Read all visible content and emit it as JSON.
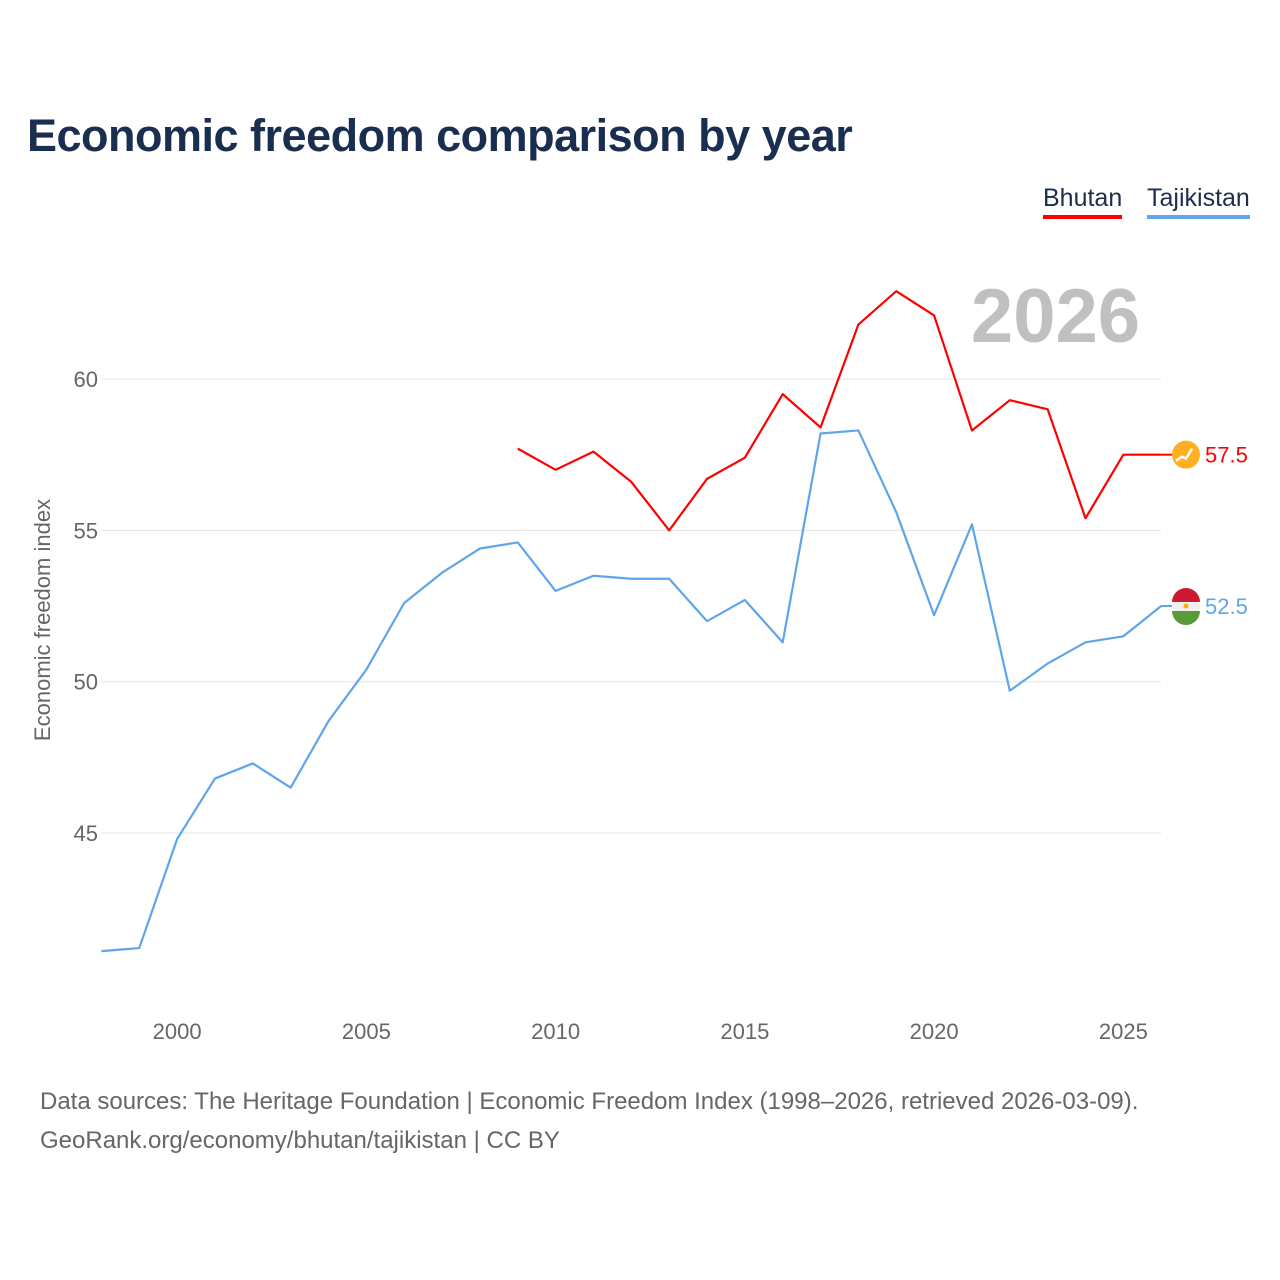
{
  "chart_data": {
    "type": "line",
    "title": "Economic freedom comparison by year",
    "xlabel": "",
    "ylabel": "Economic freedom index",
    "xlim": [
      1998,
      2026
    ],
    "ylim": [
      40,
      64
    ],
    "yticks": [
      45,
      50,
      55,
      60
    ],
    "xticks": [
      2000,
      2005,
      2010,
      2015,
      2020,
      2025
    ],
    "grid": true,
    "legend_position": "top-right",
    "year_watermark": "2026",
    "series": [
      {
        "name": "Bhutan",
        "color": "#ff0000",
        "end_label": "57.5",
        "x": [
          2009,
          2010,
          2011,
          2012,
          2013,
          2014,
          2015,
          2016,
          2017,
          2018,
          2019,
          2020,
          2021,
          2022,
          2023,
          2024,
          2025,
          2026
        ],
        "values": [
          57.7,
          57.0,
          57.6,
          56.6,
          55.0,
          56.7,
          57.4,
          59.5,
          58.4,
          61.8,
          62.9,
          62.1,
          58.3,
          59.3,
          59.0,
          55.4,
          57.5,
          57.5
        ]
      },
      {
        "name": "Tajikistan",
        "color": "#5ea5ea",
        "end_label": "52.5",
        "x": [
          1998,
          1999,
          2000,
          2001,
          2002,
          2003,
          2004,
          2005,
          2006,
          2007,
          2008,
          2009,
          2010,
          2011,
          2012,
          2013,
          2014,
          2015,
          2016,
          2017,
          2018,
          2019,
          2020,
          2021,
          2022,
          2023,
          2024,
          2025,
          2026
        ],
        "values": [
          41.1,
          41.2,
          44.8,
          46.8,
          47.3,
          46.5,
          48.7,
          50.4,
          52.6,
          53.6,
          54.4,
          54.6,
          53.0,
          53.5,
          53.4,
          53.4,
          52.0,
          52.7,
          51.3,
          58.2,
          58.3,
          55.6,
          52.2,
          55.2,
          49.7,
          50.6,
          51.3,
          51.5,
          52.5
        ]
      }
    ]
  },
  "footer": {
    "line1": "Data sources: The Heritage Foundation | Economic Freedom Index (1998–2026, retrieved 2026-03-09).",
    "line2": "GeoRank.org/economy/bhutan/tajikistan | CC BY"
  }
}
